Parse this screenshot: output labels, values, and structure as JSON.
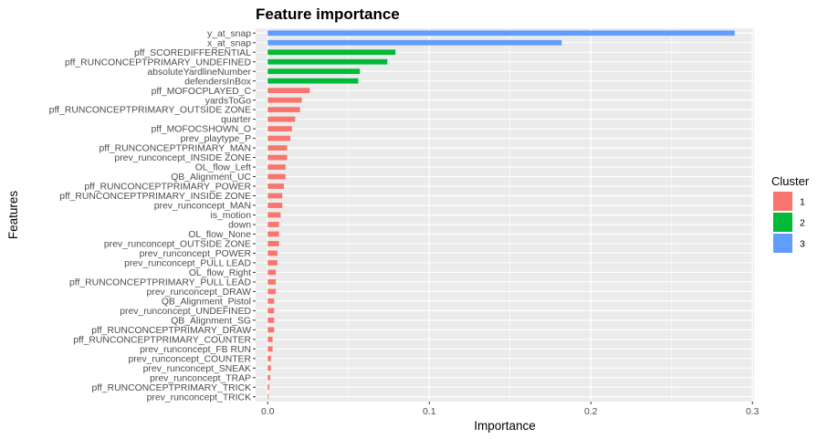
{
  "chart_data": {
    "type": "bar",
    "orientation": "horizontal",
    "title": "Feature importance",
    "xlabel": "Importance",
    "ylabel": "Features",
    "xlim": [
      -0.0075,
      0.301
    ],
    "xticks": [
      0.0,
      0.1,
      0.2,
      0.3
    ],
    "xtick_labels": [
      "0.0",
      "0.1",
      "0.2",
      "0.3"
    ],
    "grid": true,
    "legend": {
      "title": "Cluster",
      "position": "right",
      "entries": [
        {
          "label": "1",
          "color": "#F8766D"
        },
        {
          "label": "2",
          "color": "#00BA38"
        },
        {
          "label": "3",
          "color": "#619CFF"
        }
      ]
    },
    "bars": [
      {
        "feature": "y_at_snap",
        "value": 0.289,
        "cluster": "3"
      },
      {
        "feature": "x_at_snap",
        "value": 0.182,
        "cluster": "3"
      },
      {
        "feature": "pff_SCOREDIFFERENTIAL",
        "value": 0.079,
        "cluster": "2"
      },
      {
        "feature": "pff_RUNCONCEPTPRIMARY_UNDEFINED",
        "value": 0.074,
        "cluster": "2"
      },
      {
        "feature": "absoluteYardlineNumber",
        "value": 0.057,
        "cluster": "2"
      },
      {
        "feature": "defendersInBox",
        "value": 0.056,
        "cluster": "2"
      },
      {
        "feature": "pff_MOFOCPLAYED_C",
        "value": 0.026,
        "cluster": "1"
      },
      {
        "feature": "yardsToGo",
        "value": 0.021,
        "cluster": "1"
      },
      {
        "feature": "pff_RUNCONCEPTPRIMARY_OUTSIDE ZONE",
        "value": 0.02,
        "cluster": "1"
      },
      {
        "feature": "quarter",
        "value": 0.017,
        "cluster": "1"
      },
      {
        "feature": "pff_MOFOCSHOWN_O",
        "value": 0.015,
        "cluster": "1"
      },
      {
        "feature": "prev_playtype_P",
        "value": 0.014,
        "cluster": "1"
      },
      {
        "feature": "pff_RUNCONCEPTPRIMARY_MAN",
        "value": 0.012,
        "cluster": "1"
      },
      {
        "feature": "prev_runconcept_INSIDE ZONE",
        "value": 0.012,
        "cluster": "1"
      },
      {
        "feature": "OL_flow_Left",
        "value": 0.011,
        "cluster": "1"
      },
      {
        "feature": "QB_Alignment_UC",
        "value": 0.011,
        "cluster": "1"
      },
      {
        "feature": "pff_RUNCONCEPTPRIMARY_POWER",
        "value": 0.01,
        "cluster": "1"
      },
      {
        "feature": "pff_RUNCONCEPTPRIMARY_INSIDE ZONE",
        "value": 0.009,
        "cluster": "1"
      },
      {
        "feature": "prev_runconcept_MAN",
        "value": 0.009,
        "cluster": "1"
      },
      {
        "feature": "is_motion",
        "value": 0.008,
        "cluster": "1"
      },
      {
        "feature": "down",
        "value": 0.007,
        "cluster": "1"
      },
      {
        "feature": "OL_flow_None",
        "value": 0.007,
        "cluster": "1"
      },
      {
        "feature": "prev_runconcept_OUTSIDE ZONE",
        "value": 0.007,
        "cluster": "1"
      },
      {
        "feature": "prev_runconcept_POWER",
        "value": 0.006,
        "cluster": "1"
      },
      {
        "feature": "prev_runconcept_PULL LEAD",
        "value": 0.006,
        "cluster": "1"
      },
      {
        "feature": "OL_flow_Right",
        "value": 0.005,
        "cluster": "1"
      },
      {
        "feature": "pff_RUNCONCEPTPRIMARY_PULL LEAD",
        "value": 0.005,
        "cluster": "1"
      },
      {
        "feature": "prev_runconcept_DRAW",
        "value": 0.005,
        "cluster": "1"
      },
      {
        "feature": "QB_Alignment_Pistol",
        "value": 0.004,
        "cluster": "1"
      },
      {
        "feature": "prev_runconcept_UNDEFINED",
        "value": 0.004,
        "cluster": "1"
      },
      {
        "feature": "QB_Alignment_SG",
        "value": 0.004,
        "cluster": "1"
      },
      {
        "feature": "pff_RUNCONCEPTPRIMARY_DRAW",
        "value": 0.004,
        "cluster": "1"
      },
      {
        "feature": "pff_RUNCONCEPTPRIMARY_COUNTER",
        "value": 0.003,
        "cluster": "1"
      },
      {
        "feature": "prev_runconcept_FB RUN",
        "value": 0.003,
        "cluster": "1"
      },
      {
        "feature": "prev_runconcept_COUNTER",
        "value": 0.002,
        "cluster": "1"
      },
      {
        "feature": "prev_runconcept_SNEAK",
        "value": 0.002,
        "cluster": "1"
      },
      {
        "feature": "prev_runconcept_TRAP",
        "value": 0.0015,
        "cluster": "1"
      },
      {
        "feature": "pff_RUNCONCEPTPRIMARY_TRICK",
        "value": 0.001,
        "cluster": "1"
      },
      {
        "feature": "prev_runconcept_TRICK",
        "value": 0.0005,
        "cluster": "1"
      }
    ]
  }
}
